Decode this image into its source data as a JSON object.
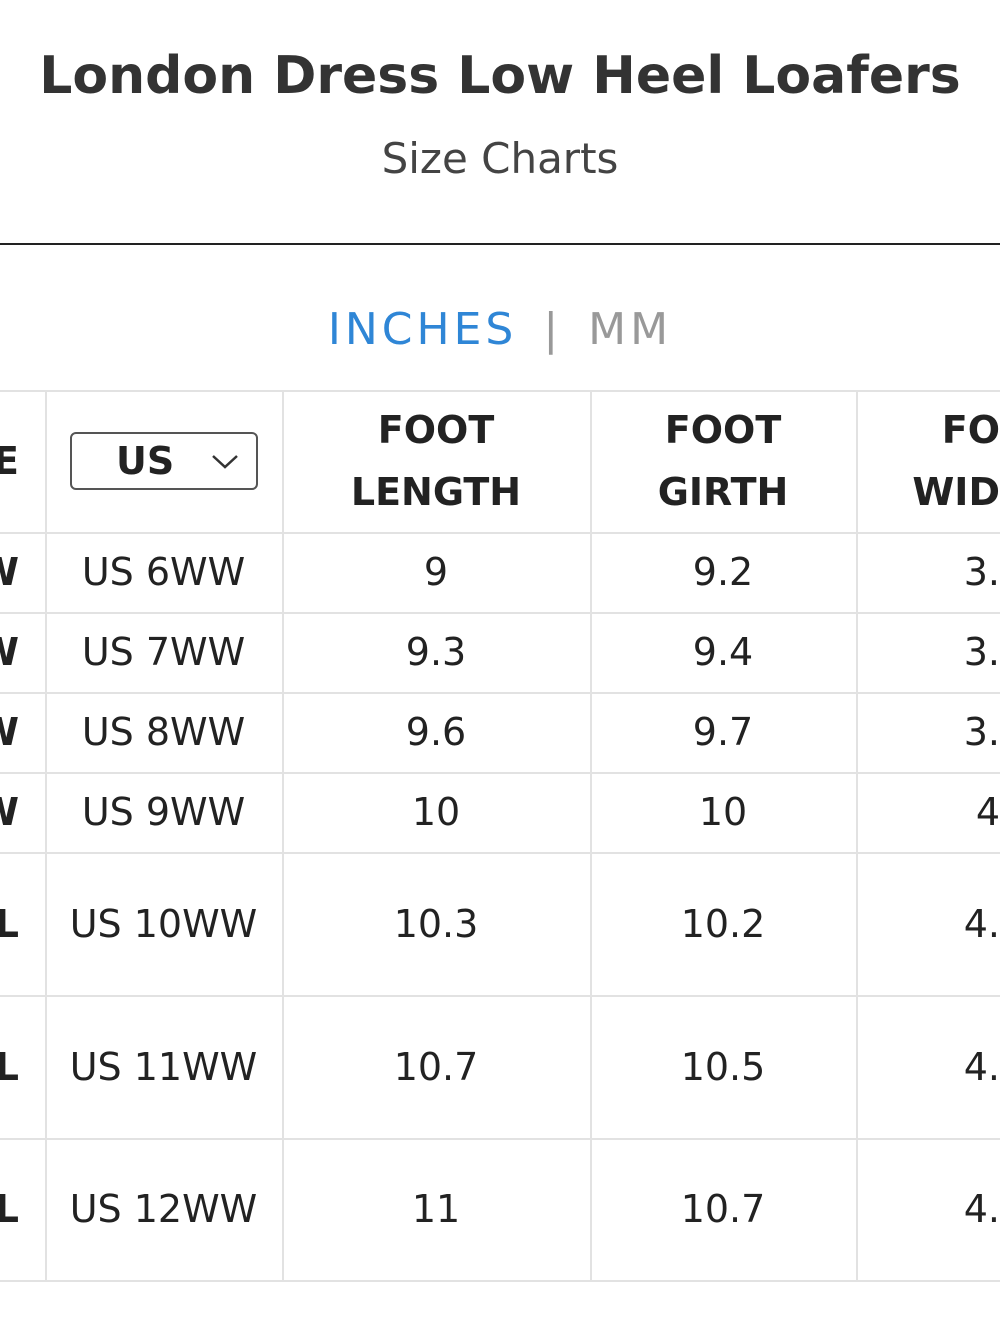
{
  "header": {
    "title": "London Dress Low Heel Loafers",
    "subtitle": "Size Charts"
  },
  "units": {
    "active": "INCHES",
    "separator": "|",
    "inactive": "MM"
  },
  "table": {
    "headers": [
      [
        "E"
      ],
      [
        "US"
      ],
      [
        "FOOT",
        "LENGTH"
      ],
      [
        "FOOT",
        "GIRTH"
      ],
      [
        "FO",
        "WID"
      ]
    ],
    "rows": [
      [
        "W",
        "US 6WW",
        "9",
        "9.2",
        "3."
      ],
      [
        "W",
        "US 7WW",
        "9.3",
        "9.4",
        "3."
      ],
      [
        "W",
        "US 8WW",
        "9.6",
        "9.7",
        "3."
      ],
      [
        "W",
        "US 9WW",
        "10",
        "10",
        "4"
      ],
      [
        "L",
        "US 10WW",
        "10.3",
        "10.2",
        "4."
      ],
      [
        "L",
        "US 11WW",
        "10.7",
        "10.5",
        "4."
      ],
      [
        "L",
        "US 12WW",
        "11",
        "10.7",
        "4."
      ]
    ]
  }
}
